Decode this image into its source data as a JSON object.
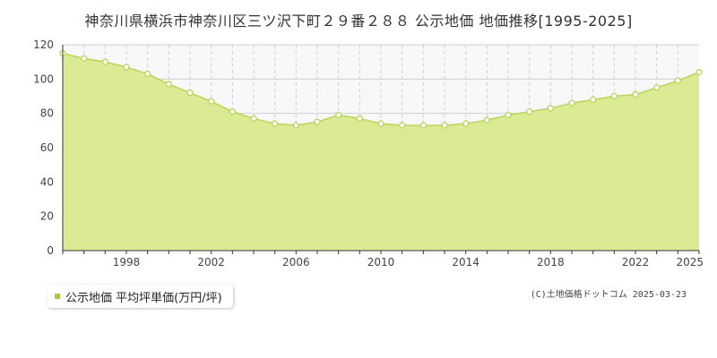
{
  "title": "神奈川県横浜市神奈川区三ツ沢下町２９番２８８ 公示地価 地価推移[1995-2025]",
  "legend": {
    "label": "公示地価 平均坪単価(万円/坪)"
  },
  "copyright": "(C)土地価格ドットコム 2025-03-23",
  "colors": {
    "fill": "#dbeb94",
    "line": "#b8d55a",
    "marker_fill": "#ffffff",
    "grid": "#d0d0d0",
    "upper_band": "#f8f8fb",
    "axis": "#333333",
    "legend_marker": "#a8cc3e"
  },
  "chart_data": {
    "type": "area",
    "title": "神奈川県横浜市神奈川区三ツ沢下町２９番２８８ 公示地価 地価推移[1995-2025]",
    "xlabel": "",
    "ylabel": "",
    "ylim": [
      0,
      120
    ],
    "yticks": [
      0,
      20,
      40,
      60,
      80,
      100,
      120
    ],
    "xlim": [
      1995,
      2025
    ],
    "xticks": [
      1998,
      2002,
      2006,
      2010,
      2014,
      2018,
      2022,
      2025
    ],
    "grid": true,
    "legend_position": "bottom-left",
    "series": [
      {
        "name": "公示地価 平均坪単価(万円/坪)",
        "x": [
          1995,
          1996,
          1997,
          1998,
          1999,
          2000,
          2001,
          2002,
          2003,
          2004,
          2005,
          2006,
          2007,
          2008,
          2009,
          2010,
          2011,
          2012,
          2013,
          2014,
          2015,
          2016,
          2017,
          2018,
          2019,
          2020,
          2021,
          2022,
          2023,
          2024,
          2025
        ],
        "values": [
          115,
          112,
          110,
          107,
          103,
          97,
          92,
          87,
          81,
          77,
          74,
          73,
          75,
          79,
          77,
          74,
          73,
          73,
          73,
          74,
          76,
          79,
          81,
          83,
          86,
          88,
          90,
          91,
          95,
          99,
          104
        ]
      }
    ]
  }
}
